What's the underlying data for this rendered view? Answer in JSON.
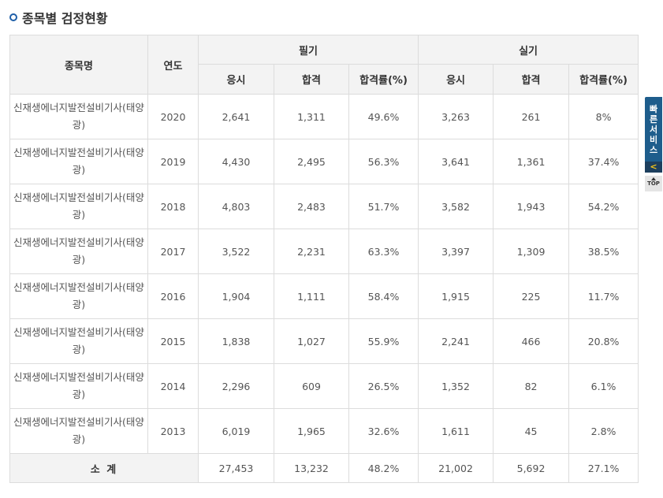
{
  "title": "종목별 검정현황",
  "headers": {
    "name": "종목명",
    "year": "연도",
    "written": "필기",
    "practical": "실기",
    "applicants": "응시",
    "passed": "합격",
    "rate": "합격률(%)"
  },
  "rows": [
    {
      "name": "신재생에너지발전설비기사(태양광)",
      "year": "2020",
      "w_apply": "2,641",
      "w_pass": "1,311",
      "w_rate": "49.6%",
      "p_apply": "3,263",
      "p_pass": "261",
      "p_rate": "8%"
    },
    {
      "name": "신재생에너지발전설비기사(태양광)",
      "year": "2019",
      "w_apply": "4,430",
      "w_pass": "2,495",
      "w_rate": "56.3%",
      "p_apply": "3,641",
      "p_pass": "1,361",
      "p_rate": "37.4%"
    },
    {
      "name": "신재생에너지발전설비기사(태양광)",
      "year": "2018",
      "w_apply": "4,803",
      "w_pass": "2,483",
      "w_rate": "51.7%",
      "p_apply": "3,582",
      "p_pass": "1,943",
      "p_rate": "54.2%"
    },
    {
      "name": "신재생에너지발전설비기사(태양광)",
      "year": "2017",
      "w_apply": "3,522",
      "w_pass": "2,231",
      "w_rate": "63.3%",
      "p_apply": "3,397",
      "p_pass": "1,309",
      "p_rate": "38.5%"
    },
    {
      "name": "신재생에너지발전설비기사(태양광)",
      "year": "2016",
      "w_apply": "1,904",
      "w_pass": "1,111",
      "w_rate": "58.4%",
      "p_apply": "1,915",
      "p_pass": "225",
      "p_rate": "11.7%"
    },
    {
      "name": "신재생에너지발전설비기사(태양광)",
      "year": "2015",
      "w_apply": "1,838",
      "w_pass": "1,027",
      "w_rate": "55.9%",
      "p_apply": "2,241",
      "p_pass": "466",
      "p_rate": "20.8%"
    },
    {
      "name": "신재생에너지발전설비기사(태양광)",
      "year": "2014",
      "w_apply": "2,296",
      "w_pass": "609",
      "w_rate": "26.5%",
      "p_apply": "1,352",
      "p_pass": "82",
      "p_rate": "6.1%"
    },
    {
      "name": "신재생에너지발전설비기사(태양광)",
      "year": "2013",
      "w_apply": "6,019",
      "w_pass": "1,965",
      "w_rate": "32.6%",
      "p_apply": "1,611",
      "p_pass": "45",
      "p_rate": "2.8%"
    }
  ],
  "total": {
    "label": "소 계",
    "w_apply": "27,453",
    "w_pass": "13,232",
    "w_rate": "48.2%",
    "p_apply": "21,002",
    "p_pass": "5,692",
    "p_rate": "27.1%"
  },
  "quick_menu": {
    "label_chars": [
      "빠",
      "른",
      "서",
      "비",
      "스"
    ],
    "arrow": "<",
    "top_label": "TOP",
    "arrow_icon": "chevron-left-icon"
  },
  "colors": {
    "accent": "#1e5d8c",
    "header_bg": "#f3f3f3",
    "border": "#dcdcdc"
  }
}
